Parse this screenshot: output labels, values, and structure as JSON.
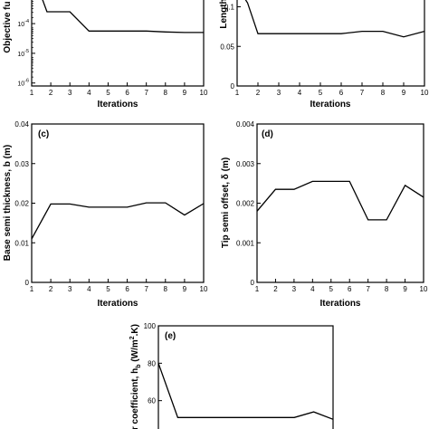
{
  "chart_data": [
    {
      "type": "line",
      "panel_label": "",
      "xlabel": "Iterations",
      "ylabel": "Objective fu",
      "xlim": [
        1,
        10
      ],
      "ylim_log10": [
        -6,
        -3
      ],
      "y_scale": "log",
      "x_ticks": [
        "1",
        "2",
        "3",
        "4",
        "5",
        "6",
        "7",
        "8",
        "9",
        "10"
      ],
      "y_ticks": [
        {
          "base": "10",
          "exp": "-6",
          "log": -6
        },
        {
          "base": "10",
          "exp": "-5",
          "log": -5
        },
        {
          "base": "10",
          "exp": "-4",
          "log": -4
        }
      ],
      "x": [
        1,
        1.8,
        3,
        4,
        5,
        6,
        7,
        8,
        9,
        10
      ],
      "y_log10": [
        -2.2,
        -3.6,
        -3.6,
        -4.25,
        -4.25,
        -4.25,
        -4.25,
        -4.28,
        -4.3,
        -4.3
      ]
    },
    {
      "type": "line",
      "panel_label": "",
      "xlabel": "Iterations",
      "ylabel": "Length",
      "xlim": [
        1,
        10
      ],
      "ylim": [
        0,
        0.12
      ],
      "y_ticks": [
        "0",
        "0.05",
        "0.1"
      ],
      "y_tick_values": [
        0,
        0.05,
        0.1
      ],
      "x_ticks": [
        "1",
        "2",
        "3",
        "4",
        "5",
        "6",
        "7",
        "8",
        "9",
        "10"
      ],
      "x": [
        1,
        1.5,
        2,
        3,
        4,
        5,
        6,
        7,
        8,
        9,
        10
      ],
      "y": [
        0.125,
        0.105,
        0.066,
        0.066,
        0.066,
        0.066,
        0.066,
        0.069,
        0.069,
        0.062,
        0.069
      ]
    },
    {
      "type": "line",
      "panel_label": "(c)",
      "xlabel": "Iterations",
      "ylabel": "Base semi thickness, b (m)",
      "xlim": [
        1,
        10
      ],
      "ylim": [
        0,
        0.04
      ],
      "y_ticks": [
        "0",
        "0.01",
        "0.02",
        "0.03",
        "0.04"
      ],
      "y_tick_values": [
        0,
        0.01,
        0.02,
        0.03,
        0.04
      ],
      "x_ticks": [
        "1",
        "2",
        "3",
        "4",
        "5",
        "6",
        "7",
        "8",
        "9",
        "10"
      ],
      "x": [
        1,
        2,
        3,
        4,
        5,
        6,
        7,
        8,
        9,
        10
      ],
      "y": [
        0.011,
        0.0198,
        0.0198,
        0.019,
        0.019,
        0.019,
        0.0201,
        0.0201,
        0.017,
        0.0199
      ]
    },
    {
      "type": "line",
      "panel_label": "(d)",
      "xlabel": "Iterations",
      "ylabel": "Tip semi offset, δ (m)",
      "xlim": [
        1,
        10
      ],
      "ylim": [
        0,
        0.004
      ],
      "y_ticks": [
        "0",
        "0.001",
        "0.002",
        "0.003",
        "0.004"
      ],
      "y_tick_values": [
        0,
        0.001,
        0.002,
        0.003,
        0.004
      ],
      "x_ticks": [
        "1",
        "2",
        "3",
        "4",
        "5",
        "6",
        "7",
        "8",
        "9",
        "10"
      ],
      "x": [
        1,
        2,
        3,
        4,
        5,
        6,
        7,
        8,
        9,
        10
      ],
      "y": [
        0.0018,
        0.00235,
        0.00235,
        0.00255,
        0.00255,
        0.00255,
        0.00158,
        0.00158,
        0.00245,
        0.00215
      ]
    },
    {
      "type": "line",
      "panel_label": "(e)",
      "xlabel": "",
      "ylabel": "fer coefficient, h",
      "ylabel_subscript": "b",
      "ylabel_units": " (W/m",
      "ylabel_units_sup": "2",
      "ylabel_units_end": ".K)",
      "xlim": [
        1,
        10
      ],
      "ylim": [
        40,
        100
      ],
      "y_ticks": [
        "60",
        "80",
        "100"
      ],
      "y_tick_values": [
        60,
        80,
        100
      ],
      "x": [
        1,
        2,
        3,
        4,
        5,
        6,
        7,
        8,
        9,
        10
      ],
      "y": [
        80,
        51,
        51,
        51,
        51,
        51,
        51,
        51,
        54,
        50
      ]
    }
  ]
}
